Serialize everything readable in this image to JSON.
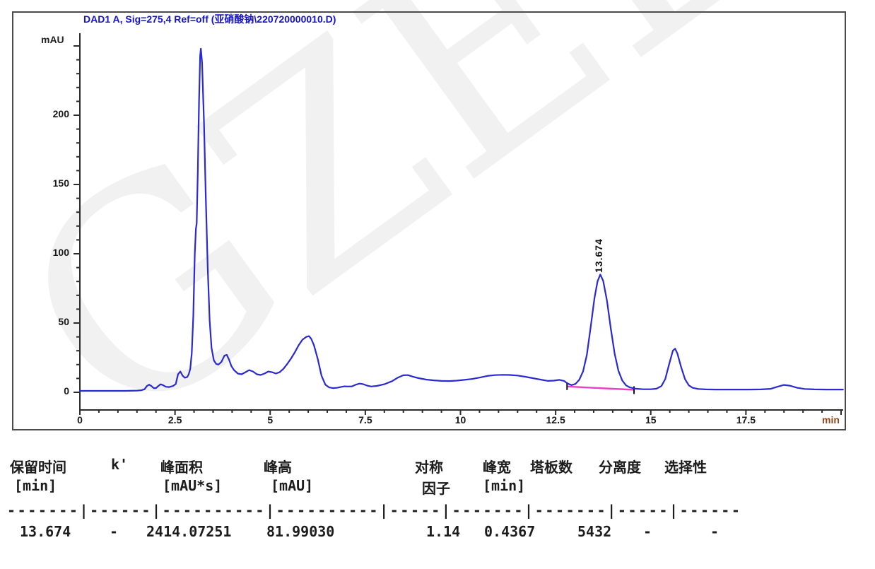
{
  "watermark": {
    "text": "GZELI"
  },
  "chart_data": {
    "type": "line",
    "title": "DAD1 A, Sig=275,4 Ref=off (亚硝酸钠\\220720000010.D)",
    "y_axis": {
      "unit": "mAU",
      "min": 0,
      "max": 250,
      "major_step": 50,
      "minor_step": 10,
      "labels": [
        "0",
        "50",
        "100",
        "150",
        "200"
      ]
    },
    "x_axis": {
      "unit": "min",
      "min": 0,
      "max": 20.05,
      "major_step": 2.5,
      "minor_step": 0.5,
      "labels": [
        "0",
        "2.5",
        "5",
        "7.5",
        "10",
        "12.5",
        "15",
        "17.5"
      ]
    },
    "colors": {
      "trace": "#2a2ad0",
      "baseline": "#ee3fc4",
      "axis": "#2b2b2b",
      "title": "#1512cf"
    },
    "peaks": [
      {
        "label": "13.674",
        "time": 13.674,
        "height_mAU": 85
      }
    ],
    "integration_baseline": {
      "start": [
        12.8,
        4.2
      ],
      "end": [
        14.56,
        1.8
      ]
    },
    "trace": [
      [
        0,
        1
      ],
      [
        0.3,
        1
      ],
      [
        0.6,
        1
      ],
      [
        0.9,
        1
      ],
      [
        1.2,
        1
      ],
      [
        1.5,
        1.2
      ],
      [
        1.62,
        1.5
      ],
      [
        1.7,
        2.2
      ],
      [
        1.76,
        4.5
      ],
      [
        1.82,
        5.5
      ],
      [
        1.88,
        4.5
      ],
      [
        1.94,
        3.0
      ],
      [
        2.0,
        3.0
      ],
      [
        2.06,
        4.5
      ],
      [
        2.12,
        5.8
      ],
      [
        2.18,
        5.2
      ],
      [
        2.26,
        4.0
      ],
      [
        2.35,
        3.8
      ],
      [
        2.45,
        4.6
      ],
      [
        2.52,
        6
      ],
      [
        2.58,
        13
      ],
      [
        2.64,
        15
      ],
      [
        2.7,
        12
      ],
      [
        2.76,
        10.5
      ],
      [
        2.82,
        11
      ],
      [
        2.86,
        13
      ],
      [
        2.9,
        17
      ],
      [
        2.94,
        28
      ],
      [
        2.98,
        55
      ],
      [
        3.02,
        100
      ],
      [
        3.05,
        118
      ],
      [
        3.07,
        122
      ],
      [
        3.1,
        160
      ],
      [
        3.13,
        210
      ],
      [
        3.16,
        243
      ],
      [
        3.18,
        248
      ],
      [
        3.21,
        238
      ],
      [
        3.26,
        195
      ],
      [
        3.31,
        140
      ],
      [
        3.36,
        90
      ],
      [
        3.41,
        52
      ],
      [
        3.46,
        32
      ],
      [
        3.52,
        23
      ],
      [
        3.58,
        20.5
      ],
      [
        3.64,
        20
      ],
      [
        3.72,
        22
      ],
      [
        3.8,
        26.5
      ],
      [
        3.86,
        27
      ],
      [
        3.92,
        23.5
      ],
      [
        3.98,
        19
      ],
      [
        4.05,
        16
      ],
      [
        4.15,
        13.5
      ],
      [
        4.25,
        13
      ],
      [
        4.35,
        14.5
      ],
      [
        4.45,
        16
      ],
      [
        4.55,
        15
      ],
      [
        4.65,
        13
      ],
      [
        4.75,
        12.5
      ],
      [
        4.85,
        13.5
      ],
      [
        4.95,
        15
      ],
      [
        5.05,
        14.5
      ],
      [
        5.15,
        13.5
      ],
      [
        5.25,
        14.5
      ],
      [
        5.35,
        17
      ],
      [
        5.45,
        20.5
      ],
      [
        5.55,
        24.5
      ],
      [
        5.65,
        29
      ],
      [
        5.75,
        34
      ],
      [
        5.85,
        38
      ],
      [
        5.95,
        40
      ],
      [
        6.02,
        40.5
      ],
      [
        6.08,
        38.5
      ],
      [
        6.15,
        34
      ],
      [
        6.25,
        24
      ],
      [
        6.35,
        12
      ],
      [
        6.45,
        5.5
      ],
      [
        6.55,
        3.5
      ],
      [
        6.65,
        3
      ],
      [
        6.75,
        3.2
      ],
      [
        6.85,
        3.8
      ],
      [
        6.95,
        4.3
      ],
      [
        7.05,
        4.2
      ],
      [
        7.15,
        4.3
      ],
      [
        7.25,
        5.5
      ],
      [
        7.35,
        6.3
      ],
      [
        7.45,
        5.8
      ],
      [
        7.55,
        4.8
      ],
      [
        7.65,
        4.2
      ],
      [
        7.8,
        4.6
      ],
      [
        8.0,
        5.8
      ],
      [
        8.2,
        8
      ],
      [
        8.35,
        10.5
      ],
      [
        8.5,
        12.3
      ],
      [
        8.62,
        12.4
      ],
      [
        8.75,
        11.3
      ],
      [
        8.9,
        10.2
      ],
      [
        9.1,
        9.2
      ],
      [
        9.3,
        8.6
      ],
      [
        9.5,
        8.2
      ],
      [
        9.7,
        8.1
      ],
      [
        9.9,
        8.4
      ],
      [
        10.1,
        9
      ],
      [
        10.3,
        9.6
      ],
      [
        10.5,
        10.6
      ],
      [
        10.7,
        11.8
      ],
      [
        10.9,
        12.4
      ],
      [
        11.1,
        12.6
      ],
      [
        11.3,
        12.5
      ],
      [
        11.5,
        12.1
      ],
      [
        11.7,
        11.2
      ],
      [
        11.9,
        10.2
      ],
      [
        12.1,
        9.2
      ],
      [
        12.3,
        8.2
      ],
      [
        12.45,
        8.4
      ],
      [
        12.6,
        9
      ],
      [
        12.72,
        8.2
      ],
      [
        12.82,
        6.2
      ],
      [
        12.92,
        5.2
      ],
      [
        13.02,
        6
      ],
      [
        13.12,
        9
      ],
      [
        13.22,
        15
      ],
      [
        13.32,
        27
      ],
      [
        13.42,
        47
      ],
      [
        13.52,
        68
      ],
      [
        13.6,
        80
      ],
      [
        13.674,
        85
      ],
      [
        13.75,
        80.5
      ],
      [
        13.85,
        66
      ],
      [
        13.95,
        46
      ],
      [
        14.05,
        28
      ],
      [
        14.15,
        15.5
      ],
      [
        14.25,
        8.5
      ],
      [
        14.35,
        5
      ],
      [
        14.45,
        3.5
      ],
      [
        14.6,
        2.6
      ],
      [
        14.8,
        2.2
      ],
      [
        15.0,
        2.2
      ],
      [
        15.15,
        2.6
      ],
      [
        15.28,
        4.5
      ],
      [
        15.38,
        9.5
      ],
      [
        15.48,
        20
      ],
      [
        15.58,
        30
      ],
      [
        15.64,
        31.5
      ],
      [
        15.7,
        28
      ],
      [
        15.8,
        18
      ],
      [
        15.9,
        9.5
      ],
      [
        16.0,
        5
      ],
      [
        16.1,
        3.2
      ],
      [
        16.25,
        2.4
      ],
      [
        16.45,
        2.1
      ],
      [
        16.7,
        2
      ],
      [
        17.0,
        2
      ],
      [
        17.3,
        2
      ],
      [
        17.6,
        2
      ],
      [
        17.9,
        2.1
      ],
      [
        18.15,
        2.5
      ],
      [
        18.35,
        4.2
      ],
      [
        18.5,
        5.3
      ],
      [
        18.65,
        4.8
      ],
      [
        18.85,
        3.2
      ],
      [
        19.05,
        2.4
      ],
      [
        19.3,
        2.1
      ],
      [
        19.6,
        2
      ],
      [
        19.9,
        2
      ],
      [
        20.05,
        2
      ]
    ]
  },
  "table": {
    "header_row1": [
      "保留时间",
      "k'",
      "峰面积",
      "峰高",
      "对称",
      "峰宽",
      "塔板数",
      "分离度",
      "选择性"
    ],
    "header_row2": [
      "[min]",
      "",
      "[mAU*s]",
      "[mAU]",
      "因子",
      "[min]",
      "",
      "",
      ""
    ],
    "separator": "-------|------|----------|----------|-----|-------|-------|-----|------",
    "rows": [
      [
        "13.674",
        "-",
        "2414.07251",
        "81.99030",
        "1.14",
        "0.4367",
        "5432",
        "-",
        "-"
      ]
    ]
  }
}
